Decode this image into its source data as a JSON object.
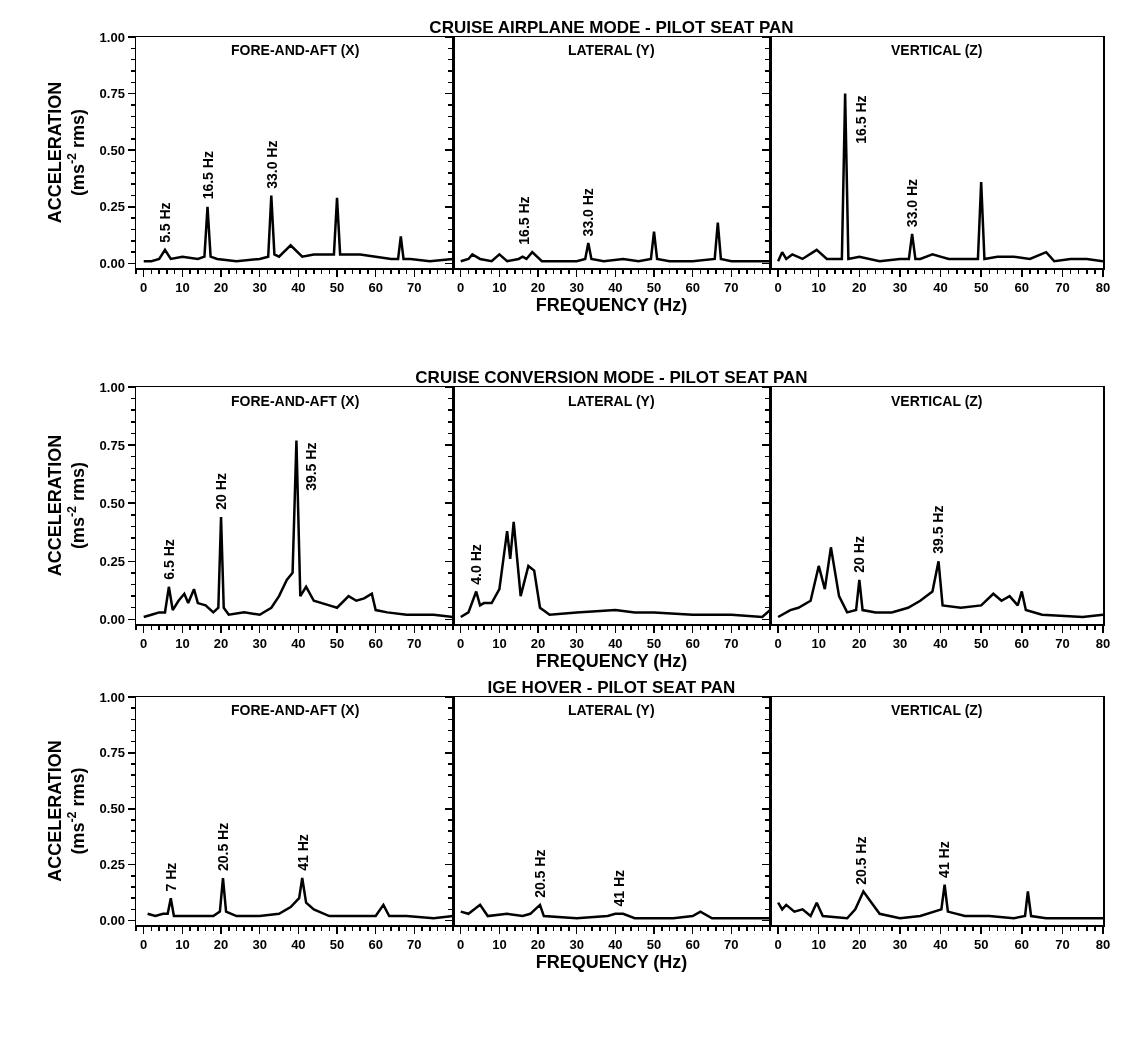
{
  "chart_data": [
    {
      "type": "line",
      "subtitle": "FORE-AND-AFT (X)",
      "ylabel": "ACCELERATION (ms$^{-2}$ rms)",
      "color": "#000000",
      "x": [
        0,
        2,
        4,
        5.5,
        7,
        10,
        14,
        15.7,
        16.5,
        17.3,
        19,
        24,
        30,
        32.2,
        33,
        33.8,
        35,
        38,
        41,
        44,
        47,
        49.2,
        50,
        50.8,
        52,
        56,
        60,
        64,
        65.8,
        66.5,
        67.2,
        69,
        74,
        80
      ],
      "values": [
        0.01,
        0.01,
        0.02,
        0.06,
        0.02,
        0.03,
        0.02,
        0.03,
        0.25,
        0.03,
        0.02,
        0.01,
        0.02,
        0.03,
        0.3,
        0.04,
        0.03,
        0.08,
        0.03,
        0.04,
        0.04,
        0.04,
        0.29,
        0.04,
        0.04,
        0.04,
        0.03,
        0.02,
        0.02,
        0.12,
        0.02,
        0.02,
        0.01,
        0.02
      ],
      "xlim": [
        -2,
        80
      ],
      "xticks": [
        0,
        10,
        20,
        30,
        40,
        50,
        60,
        70
      ],
      "ylim": [
        -0.02,
        1
      ],
      "yticks": [
        {
          "value": 0,
          "label": "0.00"
        },
        {
          "value": 0.25,
          "label": "0.25"
        },
        {
          "value": 0.5,
          "label": "0.50"
        },
        {
          "value": 0.75,
          "label": "0.75"
        },
        {
          "value": 1,
          "label": "1.00"
        }
      ],
      "annotations": [
        {
          "text": "5.5 Hz",
          "x": 5.5,
          "y": 0.06
        },
        {
          "text": "16.5 Hz",
          "x": 16.5,
          "y": 0.25
        },
        {
          "text": "33.0 Hz",
          "x": 33,
          "y": 0.3
        }
      ]
    },
    {
      "type": "line",
      "title": "CRUISE AIRPLANE MODE - PILOT SEAT PAN",
      "subtitle": "LATERAL (Y)",
      "xlabel": "FREQUENCY (Hz)",
      "color": "#000000",
      "tick_labels": "x",
      "x": [
        0,
        2,
        3,
        5,
        8,
        10,
        12,
        15,
        16,
        17,
        18.5,
        21,
        25,
        30,
        32.2,
        33,
        33.8,
        37,
        42,
        46,
        49.2,
        50,
        50.8,
        54,
        60,
        65.7,
        66.5,
        67.3,
        70,
        75,
        80
      ],
      "values": [
        0.01,
        0.02,
        0.04,
        0.02,
        0.01,
        0.04,
        0.01,
        0.02,
        0.03,
        0.02,
        0.05,
        0.01,
        0.01,
        0.01,
        0.02,
        0.09,
        0.02,
        0.01,
        0.02,
        0.01,
        0.02,
        0.14,
        0.02,
        0.01,
        0.01,
        0.02,
        0.18,
        0.02,
        0.01,
        0.01,
        0.01
      ],
      "xlim": [
        -2,
        80
      ],
      "xticks": [
        0,
        10,
        20,
        30,
        40,
        50,
        60,
        70
      ],
      "ylim": [
        -0.02,
        1
      ],
      "yticks": [
        0,
        0.25,
        0.5,
        0.75,
        1
      ],
      "annotations": [
        {
          "text": "16.5 Hz",
          "x": 16.5,
          "y": 0.05
        },
        {
          "text": "33.0 Hz",
          "x": 33,
          "y": 0.09
        }
      ]
    },
    {
      "type": "line",
      "subtitle": "VERTICAL (Z)",
      "color": "#000000",
      "tick_labels": "x",
      "x": [
        0,
        1,
        2,
        3.5,
        6,
        9.5,
        12,
        15.7,
        16.5,
        17.3,
        20,
        25,
        30,
        32.2,
        33,
        33.8,
        35,
        38,
        42,
        46,
        49.2,
        50,
        50.8,
        54,
        58,
        62,
        66,
        68,
        72,
        76,
        80
      ],
      "values": [
        0.01,
        0.05,
        0.02,
        0.04,
        0.02,
        0.06,
        0.02,
        0.02,
        0.75,
        0.02,
        0.03,
        0.01,
        0.02,
        0.02,
        0.13,
        0.02,
        0.02,
        0.04,
        0.02,
        0.02,
        0.02,
        0.36,
        0.02,
        0.03,
        0.03,
        0.02,
        0.05,
        0.01,
        0.02,
        0.02,
        0.01
      ],
      "xlim": [
        -2,
        80
      ],
      "xticks": [
        0,
        10,
        20,
        30,
        40,
        50,
        60,
        70,
        80
      ],
      "ylim": [
        -0.02,
        1
      ],
      "yticks": [
        0,
        0.25,
        0.5,
        0.75,
        1
      ],
      "annotations": [
        {
          "text": "16.5 Hz",
          "x": 16.5,
          "y": 0.75
        },
        {
          "text": "33.0 Hz",
          "x": 33,
          "y": 0.13
        }
      ]
    },
    {
      "type": "line",
      "subtitle": "FORE-AND-AFT (X)",
      "ylabel": "ACCELERATION (ms$^{-2}$ rms)",
      "color": "#000000",
      "x": [
        0,
        2,
        4,
        5.5,
        6.5,
        7.5,
        9,
        10.5,
        11.5,
        13,
        14,
        16,
        18,
        19.3,
        20,
        20.7,
        22,
        26,
        30,
        33,
        35,
        37,
        38.5,
        39.5,
        40.5,
        42,
        44,
        48,
        50,
        53,
        55,
        57,
        59,
        60,
        63,
        68,
        75,
        80
      ],
      "values": [
        0.01,
        0.02,
        0.03,
        0.03,
        0.14,
        0.04,
        0.08,
        0.11,
        0.07,
        0.13,
        0.07,
        0.06,
        0.03,
        0.05,
        0.44,
        0.05,
        0.02,
        0.03,
        0.02,
        0.05,
        0.1,
        0.17,
        0.2,
        0.77,
        0.1,
        0.14,
        0.08,
        0.06,
        0.05,
        0.1,
        0.08,
        0.09,
        0.11,
        0.04,
        0.03,
        0.02,
        0.02,
        0.01
      ],
      "xlim": [
        -2,
        80
      ],
      "xticks": [
        0,
        10,
        20,
        30,
        40,
        50,
        60,
        70
      ],
      "ylim": [
        -0.02,
        1
      ],
      "yticks": [
        {
          "value": 0,
          "label": "0.00"
        },
        {
          "value": 0.25,
          "label": "0.25"
        },
        {
          "value": 0.5,
          "label": "0.50"
        },
        {
          "value": 0.75,
          "label": "0.75"
        },
        {
          "value": 1,
          "label": "1.00"
        }
      ],
      "annotations": [
        {
          "text": "6.5 Hz",
          "x": 6.5,
          "y": 0.14
        },
        {
          "text": "20 Hz",
          "x": 20,
          "y": 0.44
        },
        {
          "text": "39.5 Hz",
          "x": 39.5,
          "y": 0.77
        }
      ]
    },
    {
      "type": "line",
      "title": "CRUISE CONVERSION MODE - PILOT SEAT PAN",
      "subtitle": "LATERAL (Y)",
      "xlabel": "FREQUENCY (Hz)",
      "color": "#000000",
      "tick_labels": "x",
      "x": [
        0,
        2,
        4,
        5,
        6,
        8,
        10,
        12,
        12.8,
        13.7,
        15.5,
        17.5,
        19,
        20.5,
        23,
        30,
        40,
        45,
        50,
        60,
        70,
        78,
        80
      ],
      "values": [
        0.01,
        0.03,
        0.12,
        0.06,
        0.07,
        0.07,
        0.13,
        0.38,
        0.26,
        0.42,
        0.1,
        0.23,
        0.21,
        0.05,
        0.02,
        0.03,
        0.04,
        0.03,
        0.03,
        0.02,
        0.02,
        0.01,
        0.04
      ],
      "xlim": [
        -2,
        80
      ],
      "xticks": [
        0,
        10,
        20,
        30,
        40,
        50,
        60,
        70
      ],
      "ylim": [
        -0.02,
        1
      ],
      "yticks": [
        0,
        0.25,
        0.5,
        0.75,
        1
      ],
      "annotations": [
        {
          "text": "4.0 Hz",
          "x": 4,
          "y": 0.12
        }
      ]
    },
    {
      "type": "line",
      "subtitle": "VERTICAL (Z)",
      "color": "#000000",
      "tick_labels": "x",
      "x": [
        0,
        3,
        5,
        8,
        10,
        11.5,
        13,
        15,
        17,
        19.2,
        20,
        20.8,
        24,
        28,
        32,
        35,
        38,
        39.5,
        40.5,
        45,
        50,
        53,
        55,
        57,
        59,
        60,
        61,
        65,
        75,
        80
      ],
      "values": [
        0.01,
        0.04,
        0.05,
        0.08,
        0.23,
        0.13,
        0.31,
        0.1,
        0.03,
        0.04,
        0.17,
        0.04,
        0.03,
        0.03,
        0.05,
        0.08,
        0.12,
        0.25,
        0.06,
        0.05,
        0.06,
        0.11,
        0.08,
        0.1,
        0.06,
        0.12,
        0.04,
        0.02,
        0.01,
        0.02
      ],
      "xlim": [
        -2,
        80
      ],
      "xticks": [
        0,
        10,
        20,
        30,
        40,
        50,
        60,
        70,
        80
      ],
      "ylim": [
        -0.02,
        1
      ],
      "yticks": [
        0,
        0.25,
        0.5,
        0.75,
        1
      ],
      "annotations": [
        {
          "text": "20 Hz",
          "x": 20,
          "y": 0.17
        },
        {
          "text": "39.5 Hz",
          "x": 39.5,
          "y": 0.25
        }
      ]
    },
    {
      "type": "line",
      "subtitle": "FORE-AND-AFT (X)",
      "ylabel": "ACCELERATION (ms$^{-2}$ rms)",
      "color": "#000000",
      "x": [
        1,
        3,
        5,
        6.2,
        7,
        7.8,
        10,
        14,
        18,
        19.7,
        20.5,
        21.3,
        24,
        30,
        35,
        38,
        40.2,
        41,
        42,
        44,
        48,
        55,
        60,
        62,
        63.5,
        68,
        75,
        80
      ],
      "values": [
        0.03,
        0.02,
        0.03,
        0.03,
        0.1,
        0.02,
        0.02,
        0.02,
        0.02,
        0.04,
        0.19,
        0.04,
        0.02,
        0.02,
        0.03,
        0.06,
        0.1,
        0.19,
        0.08,
        0.05,
        0.02,
        0.02,
        0.02,
        0.07,
        0.02,
        0.02,
        0.01,
        0.02
      ],
      "xlim": [
        -2,
        80
      ],
      "xticks": [
        0,
        10,
        20,
        30,
        40,
        50,
        60,
        70
      ],
      "ylim": [
        -0.02,
        1
      ],
      "yticks": [
        {
          "value": 0,
          "label": "0.00"
        },
        {
          "value": 0.25,
          "label": "0.25"
        },
        {
          "value": 0.5,
          "label": "0.50"
        },
        {
          "value": 0.75,
          "label": "0.75"
        },
        {
          "value": 1,
          "label": "1.00"
        }
      ],
      "annotations": [
        {
          "text": "7 Hz",
          "x": 7,
          "y": 0.1
        },
        {
          "text": "20.5 Hz",
          "x": 20.5,
          "y": 0.19
        },
        {
          "text": "41 Hz",
          "x": 41,
          "y": 0.19
        }
      ]
    },
    {
      "type": "line",
      "title": "IGE HOVER - PILOT SEAT PAN",
      "subtitle": "LATERAL (Y)",
      "xlabel": "FREQUENCY (Hz)",
      "color": "#000000",
      "tick_labels": "x",
      "x": [
        0,
        2,
        5,
        7,
        12,
        16,
        18,
        20.5,
        21.5,
        30,
        38,
        40,
        42,
        45,
        55,
        60,
        62,
        65,
        72,
        80
      ],
      "values": [
        0.04,
        0.03,
        0.07,
        0.02,
        0.03,
        0.02,
        0.03,
        0.07,
        0.02,
        0.01,
        0.02,
        0.03,
        0.03,
        0.01,
        0.01,
        0.02,
        0.04,
        0.01,
        0.01,
        0.01
      ],
      "xlim": [
        -2,
        80
      ],
      "xticks": [
        0,
        10,
        20,
        30,
        40,
        50,
        60,
        70
      ],
      "ylim": [
        -0.02,
        1
      ],
      "yticks": [
        0,
        0.25,
        0.5,
        0.75,
        1
      ],
      "annotations": [
        {
          "text": "20.5 Hz",
          "x": 20.5,
          "y": 0.07
        },
        {
          "text": "41 Hz",
          "x": 41,
          "y": 0.03
        }
      ]
    },
    {
      "type": "line",
      "subtitle": "VERTICAL (Z)",
      "color": "#000000",
      "tick_labels": "x",
      "x": [
        0,
        1,
        2,
        4,
        6,
        8,
        9.5,
        11,
        17,
        19,
        21,
        23,
        25,
        30,
        35,
        40.2,
        41,
        41.8,
        46,
        52,
        58,
        60.8,
        61.5,
        62.3,
        66,
        73,
        80
      ],
      "values": [
        0.08,
        0.05,
        0.07,
        0.04,
        0.05,
        0.02,
        0.08,
        0.02,
        0.01,
        0.05,
        0.13,
        0.08,
        0.03,
        0.01,
        0.02,
        0.05,
        0.16,
        0.04,
        0.02,
        0.02,
        0.01,
        0.02,
        0.13,
        0.02,
        0.01,
        0.01,
        0.01
      ],
      "xlim": [
        -2,
        80
      ],
      "xticks": [
        0,
        10,
        20,
        30,
        40,
        50,
        60,
        70,
        80
      ],
      "ylim": [
        -0.02,
        1
      ],
      "yticks": [
        0,
        0.25,
        0.5,
        0.75,
        1
      ],
      "annotations": [
        {
          "text": "20.5 Hz",
          "x": 20.5,
          "y": 0.13
        },
        {
          "text": "41 Hz",
          "x": 41,
          "y": 0.16
        }
      ]
    }
  ]
}
